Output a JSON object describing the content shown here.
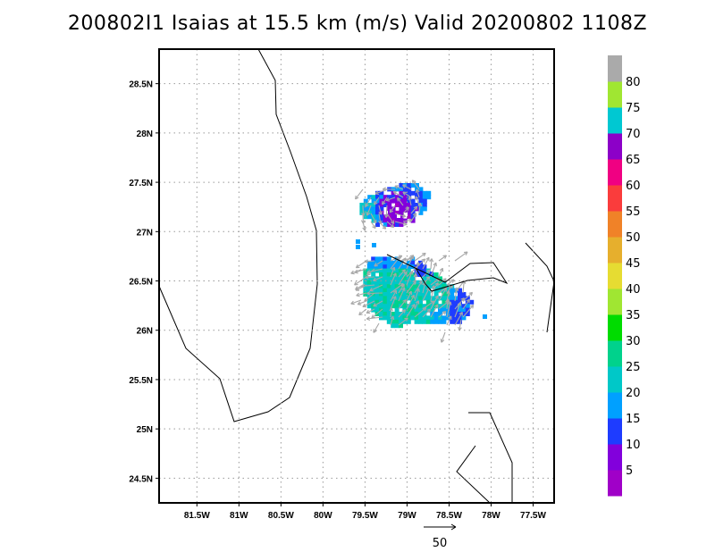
{
  "title": "200802I1 Isaias at 15.5 km (m/s) Valid 20200802 1108Z",
  "map": {
    "lon_range": [
      -81.95,
      -77.25
    ],
    "lat_range": [
      24.25,
      28.85
    ],
    "lon_ticks": [
      {
        "value": -81.5,
        "label": "81.5W"
      },
      {
        "value": -81.0,
        "label": "81W"
      },
      {
        "value": -80.5,
        "label": "80.5W"
      },
      {
        "value": -80.0,
        "label": "80W"
      },
      {
        "value": -79.5,
        "label": "79.5W"
      },
      {
        "value": -79.0,
        "label": "79W"
      },
      {
        "value": -78.5,
        "label": "78.5W"
      },
      {
        "value": -78.0,
        "label": "78W"
      },
      {
        "value": -77.5,
        "label": "77.5W"
      }
    ],
    "lat_ticks": [
      {
        "value": 24.5,
        "label": "24.5N"
      },
      {
        "value": 25.0,
        "label": "25N"
      },
      {
        "value": 25.5,
        "label": "25.5N"
      },
      {
        "value": 26.0,
        "label": "26N"
      },
      {
        "value": 26.5,
        "label": "26.5N"
      },
      {
        "value": 27.0,
        "label": "27N"
      },
      {
        "value": 27.5,
        "label": "27.5N"
      },
      {
        "value": 28.0,
        "label": "28N"
      },
      {
        "value": 28.5,
        "label": "28.5N"
      }
    ],
    "grid": true
  },
  "colorbar": {
    "labels": [
      "5",
      "10",
      "15",
      "20",
      "25",
      "30",
      "35",
      "40",
      "45",
      "50",
      "55",
      "60",
      "65",
      "70",
      "75",
      "80"
    ],
    "colors": [
      "#a000c8",
      "#8200dc",
      "#1e3cff",
      "#00a0ff",
      "#00c8c8",
      "#00d28c",
      "#00dc00",
      "#a0e632",
      "#e6dc32",
      "#e6af2d",
      "#f08228",
      "#fa3c3c",
      "#f00082",
      "#8c00c8",
      "#00c8d2",
      "#a0e632",
      "#aaaaaa"
    ]
  },
  "reference_vector": {
    "label": "50"
  }
}
